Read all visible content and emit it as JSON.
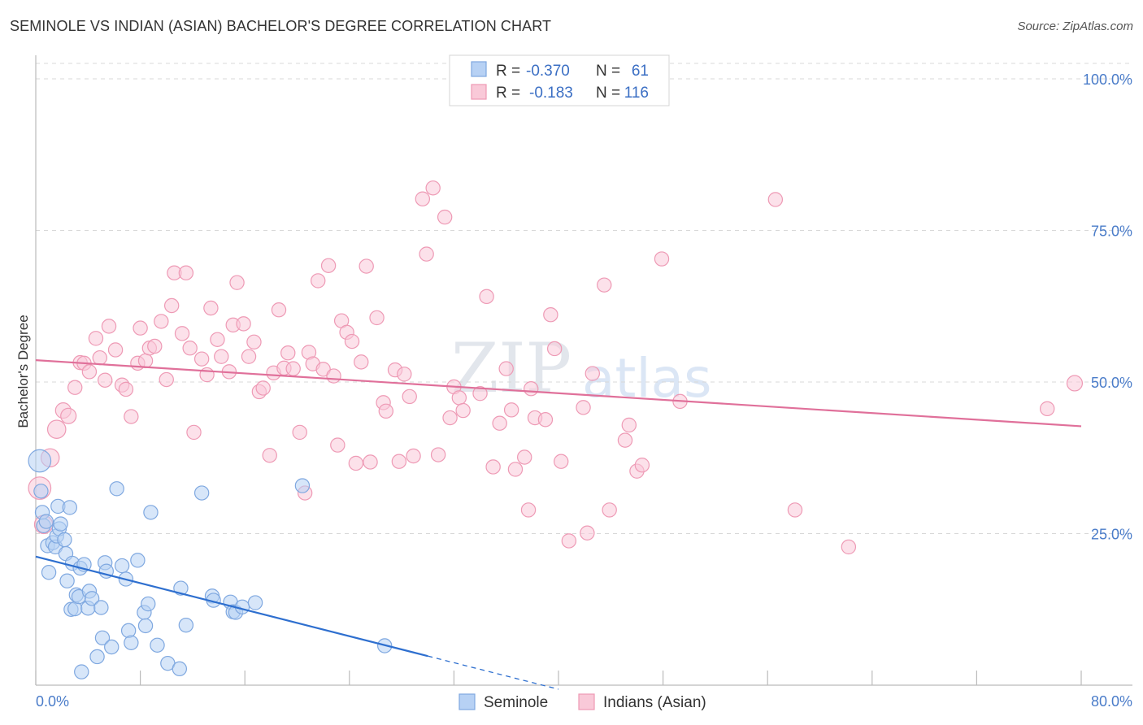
{
  "title": "SEMINOLE VS INDIAN (ASIAN) BACHELOR'S DEGREE CORRELATION CHART",
  "source": "Source: ZipAtlas.com",
  "watermark": {
    "zip": "ZIP",
    "atlas": "atlas"
  },
  "colors": {
    "seminole_fill": "#b7d1f4",
    "seminole_stroke": "#7fa8e0",
    "seminole_line": "#2e6fcf",
    "indian_fill": "#f9c9d8",
    "indian_stroke": "#ee9ab5",
    "indian_line": "#e0709a",
    "grid": "#d8d8d8",
    "tick_text": "#4a7cc9"
  },
  "legend": {
    "rows": [
      {
        "r_label": "R =",
        "r_value": "-0.370",
        "n_label": "N =",
        "n_value": "61"
      },
      {
        "r_label": "R =",
        "r_value": "-0.183",
        "n_label": "N =",
        "n_value": "116"
      }
    ]
  },
  "chart_data": {
    "type": "scatter",
    "title": "SEMINOLE VS INDIAN (ASIAN) BACHELOR'S DEGREE CORRELATION CHART",
    "xlabel": "",
    "ylabel": "Bachelor's Degree",
    "xlim": [
      0,
      80
    ],
    "ylim": [
      0,
      100
    ],
    "x_tick_labels": [
      "0.0%",
      "80.0%"
    ],
    "y_ticks": [
      25,
      50,
      75,
      100
    ],
    "y_tick_labels": [
      "25.0%",
      "50.0%",
      "75.0%",
      "100.0%"
    ],
    "grid": true,
    "legend_position": "top-center",
    "series": [
      {
        "name": "Seminole",
        "trend": {
          "x0": 0,
          "y0": 21.2,
          "x1": 30,
          "y1": 4.8,
          "dashed_to_x": 40
        },
        "points": [
          [
            0.3,
            37.0,
            1.6
          ],
          [
            0.4,
            32.0,
            1
          ],
          [
            0.5,
            28.5,
            1
          ],
          [
            0.6,
            26.3,
            1
          ],
          [
            0.8,
            27.0,
            1
          ],
          [
            0.9,
            23.0,
            1
          ],
          [
            1.0,
            18.6,
            1
          ],
          [
            1.3,
            23.5,
            1
          ],
          [
            1.5,
            22.8,
            1
          ],
          [
            1.6,
            24.6,
            1
          ],
          [
            1.7,
            29.5,
            1
          ],
          [
            1.8,
            25.8,
            1
          ],
          [
            1.9,
            26.6,
            1
          ],
          [
            2.2,
            24.0,
            1
          ],
          [
            2.3,
            21.7,
            1
          ],
          [
            2.4,
            17.2,
            1
          ],
          [
            2.6,
            29.3,
            1
          ],
          [
            2.7,
            12.5,
            1
          ],
          [
            2.8,
            20.1,
            1
          ],
          [
            3.0,
            12.6,
            1
          ],
          [
            3.1,
            14.9,
            1
          ],
          [
            3.3,
            14.6,
            1
          ],
          [
            3.4,
            19.3,
            1
          ],
          [
            3.5,
            2.2,
            1
          ],
          [
            3.7,
            19.9,
            1
          ],
          [
            4.0,
            12.7,
            1
          ],
          [
            4.1,
            15.5,
            1
          ],
          [
            4.3,
            14.3,
            1
          ],
          [
            4.7,
            4.7,
            1
          ],
          [
            5.0,
            12.8,
            1
          ],
          [
            5.1,
            7.8,
            1
          ],
          [
            5.3,
            20.2,
            1
          ],
          [
            5.4,
            18.8,
            1
          ],
          [
            5.8,
            6.3,
            1
          ],
          [
            6.2,
            32.4,
            1
          ],
          [
            6.6,
            19.7,
            1
          ],
          [
            6.9,
            17.5,
            1
          ],
          [
            7.1,
            9.0,
            1
          ],
          [
            7.3,
            7.0,
            1
          ],
          [
            7.8,
            20.6,
            1
          ],
          [
            8.3,
            12.0,
            1
          ],
          [
            8.4,
            9.8,
            1
          ],
          [
            8.6,
            13.4,
            1
          ],
          [
            8.8,
            28.5,
            1
          ],
          [
            9.3,
            6.6,
            1
          ],
          [
            10.1,
            3.6,
            1
          ],
          [
            11.0,
            2.7,
            1
          ],
          [
            11.1,
            16.0,
            1
          ],
          [
            11.5,
            9.9,
            1
          ],
          [
            12.7,
            31.7,
            1
          ],
          [
            13.5,
            14.7,
            1
          ],
          [
            13.6,
            14.0,
            1
          ],
          [
            14.9,
            13.7,
            1
          ],
          [
            15.1,
            12.1,
            1
          ],
          [
            15.3,
            12.0,
            1
          ],
          [
            15.8,
            12.9,
            1
          ],
          [
            16.8,
            13.6,
            1
          ],
          [
            20.4,
            32.9,
            1
          ],
          [
            26.7,
            6.5,
            1
          ]
        ]
      },
      {
        "name": "Indians (Asian)",
        "trend": {
          "x0": 0,
          "y0": 53.6,
          "x1": 80,
          "y1": 42.7
        },
        "points": [
          [
            0.3,
            32.5,
            1.6
          ],
          [
            0.6,
            26.5,
            1.3
          ],
          [
            1.1,
            37.5,
            1.3
          ],
          [
            1.6,
            42.2,
            1.3
          ],
          [
            2.1,
            45.3,
            1.1
          ],
          [
            2.5,
            44.4,
            1.1
          ],
          [
            3.0,
            49.1,
            1
          ],
          [
            3.4,
            53.2,
            1
          ],
          [
            3.7,
            53.1,
            1
          ],
          [
            4.1,
            51.7,
            1
          ],
          [
            4.6,
            57.2,
            1
          ],
          [
            4.9,
            54.0,
            1
          ],
          [
            5.3,
            50.3,
            1
          ],
          [
            5.6,
            59.2,
            1
          ],
          [
            6.1,
            55.3,
            1
          ],
          [
            6.6,
            49.5,
            1
          ],
          [
            6.9,
            48.8,
            1
          ],
          [
            7.3,
            44.3,
            1
          ],
          [
            7.8,
            53.1,
            1
          ],
          [
            8.0,
            58.9,
            1
          ],
          [
            8.4,
            53.5,
            1
          ],
          [
            8.7,
            55.6,
            1
          ],
          [
            9.1,
            55.9,
            1
          ],
          [
            9.6,
            60.0,
            1
          ],
          [
            10.0,
            50.4,
            1
          ],
          [
            10.4,
            62.6,
            1
          ],
          [
            10.6,
            68.0,
            1
          ],
          [
            11.2,
            58.0,
            1
          ],
          [
            11.5,
            68.0,
            1
          ],
          [
            11.8,
            55.6,
            1
          ],
          [
            12.1,
            41.7,
            1
          ],
          [
            12.7,
            53.8,
            1
          ],
          [
            13.1,
            51.2,
            1
          ],
          [
            13.4,
            62.2,
            1
          ],
          [
            13.9,
            57.0,
            1
          ],
          [
            14.2,
            54.2,
            1
          ],
          [
            14.8,
            51.7,
            1
          ],
          [
            15.1,
            59.4,
            1
          ],
          [
            15.4,
            66.4,
            1
          ],
          [
            15.9,
            59.6,
            1
          ],
          [
            16.3,
            54.2,
            1
          ],
          [
            16.7,
            56.6,
            1
          ],
          [
            17.1,
            48.4,
            1
          ],
          [
            17.4,
            49.0,
            1
          ],
          [
            17.9,
            37.9,
            1
          ],
          [
            18.2,
            51.5,
            1
          ],
          [
            18.6,
            61.9,
            1
          ],
          [
            19.0,
            52.3,
            1
          ],
          [
            19.3,
            54.8,
            1
          ],
          [
            19.7,
            52.2,
            1
          ],
          [
            20.2,
            41.7,
            1
          ],
          [
            20.6,
            31.7,
            1
          ],
          [
            20.9,
            54.9,
            1
          ],
          [
            21.2,
            53.0,
            1
          ],
          [
            21.6,
            66.7,
            1
          ],
          [
            22.0,
            52.1,
            1
          ],
          [
            22.4,
            69.2,
            1
          ],
          [
            22.8,
            51.0,
            1
          ],
          [
            23.1,
            39.6,
            1
          ],
          [
            23.4,
            60.1,
            1
          ],
          [
            23.8,
            58.2,
            1
          ],
          [
            24.2,
            56.7,
            1
          ],
          [
            24.5,
            36.6,
            1
          ],
          [
            24.9,
            53.3,
            1
          ],
          [
            25.3,
            69.1,
            1
          ],
          [
            25.6,
            36.8,
            1
          ],
          [
            26.1,
            60.6,
            1
          ],
          [
            26.6,
            46.6,
            1
          ],
          [
            26.8,
            45.2,
            1
          ],
          [
            27.5,
            52.0,
            1
          ],
          [
            27.8,
            36.9,
            1
          ],
          [
            28.2,
            51.3,
            1
          ],
          [
            28.6,
            47.6,
            1
          ],
          [
            28.9,
            37.8,
            1
          ],
          [
            29.6,
            80.2,
            1
          ],
          [
            29.9,
            71.1,
            1
          ],
          [
            30.4,
            82.0,
            1
          ],
          [
            30.8,
            38.0,
            1
          ],
          [
            31.3,
            77.2,
            1
          ],
          [
            31.7,
            44.1,
            1
          ],
          [
            32.0,
            49.2,
            1
          ],
          [
            32.4,
            47.4,
            1
          ],
          [
            32.7,
            45.3,
            1
          ],
          [
            34.0,
            48.1,
            1
          ],
          [
            34.5,
            64.1,
            1
          ],
          [
            35.0,
            36.0,
            1
          ],
          [
            35.5,
            43.2,
            1
          ],
          [
            36.0,
            52.2,
            1
          ],
          [
            36.4,
            45.4,
            1
          ],
          [
            36.7,
            35.6,
            1
          ],
          [
            37.4,
            37.6,
            1
          ],
          [
            37.7,
            28.9,
            1
          ],
          [
            37.9,
            48.9,
            1
          ],
          [
            38.2,
            44.1,
            1
          ],
          [
            39.0,
            43.8,
            1
          ],
          [
            39.4,
            61.1,
            1
          ],
          [
            39.7,
            55.5,
            1
          ],
          [
            40.2,
            36.9,
            1
          ],
          [
            40.8,
            23.8,
            1
          ],
          [
            41.9,
            45.8,
            1
          ],
          [
            42.2,
            25.1,
            1
          ],
          [
            42.6,
            51.4,
            1
          ],
          [
            43.5,
            66.0,
            1
          ],
          [
            43.9,
            28.9,
            1
          ],
          [
            45.1,
            40.4,
            1
          ],
          [
            45.4,
            42.9,
            1
          ],
          [
            46.0,
            35.3,
            1
          ],
          [
            46.4,
            36.3,
            1
          ],
          [
            47.9,
            70.3,
            1
          ],
          [
            49.3,
            46.8,
            1
          ],
          [
            56.6,
            80.1,
            1
          ],
          [
            58.1,
            28.9,
            1
          ],
          [
            62.2,
            22.8,
            1
          ],
          [
            77.4,
            45.6,
            1
          ],
          [
            79.5,
            49.8,
            1.1
          ]
        ]
      }
    ]
  },
  "bottom_legend": [
    {
      "label": "Seminole"
    },
    {
      "label": "Indians (Asian)"
    }
  ]
}
